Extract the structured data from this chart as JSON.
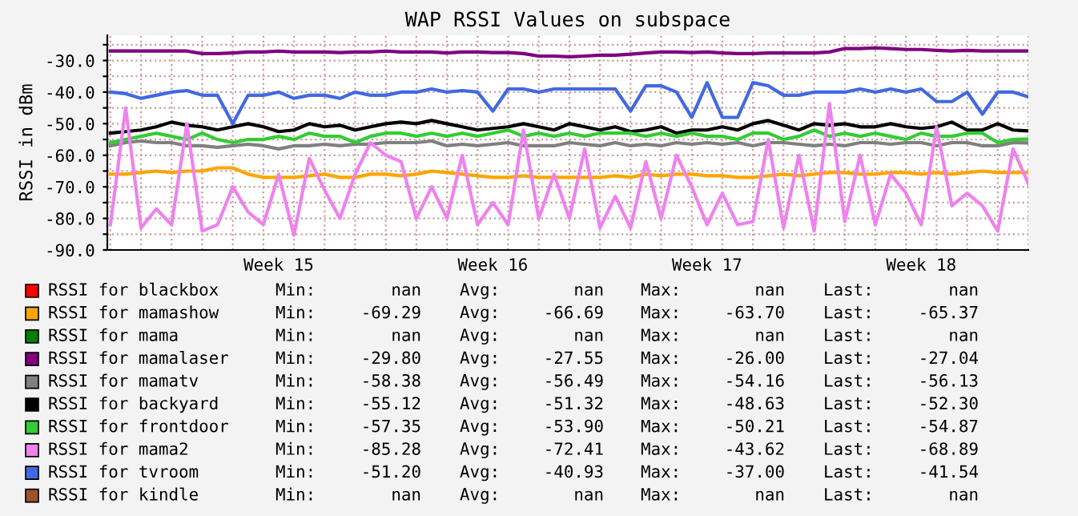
{
  "chart_data": {
    "type": "line",
    "title": "WAP RSSI Values on subspace",
    "ylabel": "RSSI in dBm",
    "categories": [
      null,
      null,
      null,
      null,
      null,
      null,
      null,
      null,
      null,
      null,
      null,
      "Week 15",
      null,
      null,
      null,
      null,
      null,
      null,
      null,
      null,
      null,
      null,
      null,
      null,
      null,
      "Week 16",
      null,
      null,
      null,
      null,
      null,
      null,
      null,
      null,
      null,
      null,
      null,
      null,
      null,
      "Week 17",
      null,
      null,
      null,
      null,
      null,
      null,
      null,
      null,
      null,
      null,
      null,
      null,
      null,
      "Week 18",
      null,
      null,
      null,
      null,
      null,
      null,
      null
    ],
    "ylim": [
      -90,
      -22
    ],
    "yticks": [
      {
        "value": -90,
        "label": "-90.0"
      },
      {
        "value": -85,
        "label": null
      },
      {
        "value": -80,
        "label": "-80.0"
      },
      {
        "value": -75,
        "label": null
      },
      {
        "value": -70,
        "label": "-70.0"
      },
      {
        "value": -65,
        "label": null
      },
      {
        "value": -60,
        "label": "-60.0"
      },
      {
        "value": -55,
        "label": null
      },
      {
        "value": -50,
        "label": "-50.0"
      },
      {
        "value": -45,
        "label": null
      },
      {
        "value": -40,
        "label": "-40.0"
      },
      {
        "value": -35,
        "label": null
      },
      {
        "value": -30,
        "label": "-30.0"
      },
      {
        "value": -25,
        "label": null
      }
    ],
    "grid": true,
    "legend": "bottom",
    "marker": "none",
    "line_style": "solid",
    "series": [
      {
        "name": "RSSI for blackbox",
        "color": "#ff0000",
        "values": [
          null,
          null,
          null,
          null,
          null,
          null,
          null,
          null,
          null,
          null,
          null,
          null,
          null,
          null,
          null,
          null,
          null,
          null,
          null,
          null,
          null,
          null,
          null,
          null,
          null,
          null,
          null,
          null,
          null,
          null,
          null,
          null,
          null,
          null,
          null,
          null,
          null,
          null,
          null,
          null,
          null,
          null,
          null,
          null,
          null,
          null,
          null,
          null,
          null,
          null,
          null,
          null,
          null,
          null,
          null,
          null,
          null,
          null,
          null,
          null,
          null
        ]
      },
      {
        "name": "RSSI for mamashow",
        "color": "#ffa500",
        "values": [
          -66,
          -66,
          -65.5,
          -65,
          -65.5,
          -65,
          -65,
          -64,
          -64,
          -66,
          -67,
          -67,
          -67,
          -66.5,
          -66,
          -67,
          -67,
          -66,
          -66,
          -66.5,
          -66,
          -65,
          -65.5,
          -66,
          -66.5,
          -67,
          -67,
          -66.5,
          -67,
          -67,
          -67,
          -67,
          -67,
          -66.5,
          -67,
          -66,
          -66.5,
          -66,
          -66,
          -66.5,
          -66.5,
          -67,
          -67,
          -66.5,
          -66,
          -66.5,
          -66,
          -65.5,
          -65.5,
          -66,
          -66,
          -65.5,
          -65.5,
          -66,
          -65.5,
          -66,
          -65.5,
          -65,
          -65.5,
          -65.5,
          -65.4
        ]
      },
      {
        "name": "RSSI for mama",
        "color": "#008000",
        "values": [
          null,
          null,
          null,
          null,
          null,
          null,
          null,
          null,
          null,
          null,
          null,
          null,
          null,
          null,
          null,
          null,
          null,
          null,
          null,
          null,
          null,
          null,
          null,
          null,
          null,
          null,
          null,
          null,
          null,
          null,
          null,
          null,
          null,
          null,
          null,
          null,
          null,
          null,
          null,
          null,
          null,
          null,
          null,
          null,
          null,
          null,
          null,
          null,
          null,
          null,
          null,
          null,
          null,
          null,
          null,
          null,
          null,
          null,
          null,
          null,
          null
        ]
      },
      {
        "name": "RSSI for mamalaser",
        "color": "#800080",
        "values": [
          -27.0,
          -27.0,
          -27.0,
          -27.0,
          -27.0,
          -27.0,
          -27.8,
          -27.8,
          -27.6,
          -27.3,
          -27.3,
          -27.0,
          -27.3,
          -27.3,
          -27.3,
          -27.5,
          -27.3,
          -27.3,
          -27.0,
          -27.3,
          -27.3,
          -27.3,
          -27.6,
          -27.3,
          -27.3,
          -27.5,
          -27.5,
          -27.8,
          -28.6,
          -28.6,
          -28.8,
          -28.6,
          -28.3,
          -28.3,
          -28.0,
          -27.6,
          -27.3,
          -27.3,
          -27.5,
          -27.3,
          -27.6,
          -27.8,
          -27.8,
          -27.6,
          -27.6,
          -27.6,
          -27.6,
          -27.3,
          -26.2,
          -26.2,
          -26.0,
          -26.2,
          -26.5,
          -26.5,
          -26.8,
          -27.0,
          -26.8,
          -27.0,
          -27.0,
          -27.0,
          -27.0
        ]
      },
      {
        "name": "RSSI for mamatv",
        "color": "#808080",
        "values": [
          -57,
          -56,
          -55.5,
          -56,
          -56,
          -57,
          -57,
          -57.5,
          -57,
          -56.5,
          -57,
          -58,
          -57,
          -57,
          -56.5,
          -57,
          -56.5,
          -56.5,
          -56,
          -56,
          -56,
          -55.5,
          -57,
          -56.5,
          -57,
          -56.5,
          -56,
          -57,
          -57,
          -57,
          -56,
          -56.5,
          -57,
          -56,
          -57,
          -56.5,
          -57,
          -56,
          -56.5,
          -56,
          -56.5,
          -56,
          -57,
          -56,
          -56,
          -56.5,
          -57,
          -56.5,
          -57,
          -56,
          -56,
          -56.5,
          -56,
          -56,
          -57,
          -56,
          -56,
          -57,
          -57,
          -56,
          -56.1
        ]
      },
      {
        "name": "RSSI for backyard",
        "color": "#000000",
        "values": [
          -53,
          -52.5,
          -52,
          -51,
          -49.5,
          -50.5,
          -51,
          -52,
          -51,
          -50,
          -51,
          -52.5,
          -52,
          -50,
          -51,
          -50.5,
          -52,
          -51,
          -50,
          -49.5,
          -50,
          -49,
          -50,
          -51,
          -52,
          -51.5,
          -51,
          -50,
          -51,
          -52,
          -50,
          -51,
          -52,
          -51,
          -52.5,
          -52,
          -51,
          -53,
          -52,
          -52,
          -51,
          -52,
          -50,
          -49,
          -50.5,
          -52,
          -50,
          -50.5,
          -50,
          -51,
          -51,
          -50,
          -51,
          -51.5,
          -51,
          -49.5,
          -52,
          -52,
          -50,
          -52,
          -52.3
        ]
      },
      {
        "name": "RSSI for frontdoor",
        "color": "#33cc33",
        "values": [
          -56,
          -55,
          -54,
          -53,
          -54,
          -55,
          -53,
          -55,
          -56,
          -55,
          -55,
          -54,
          -55,
          -53,
          -54,
          -54,
          -56,
          -54,
          -53,
          -53,
          -54,
          -53,
          -54,
          -53,
          -54,
          -53,
          -52,
          -54,
          -53,
          -54,
          -53,
          -54,
          -53,
          -53,
          -53,
          -54,
          -53,
          -54,
          -53,
          -54,
          -54,
          -55,
          -53,
          -53,
          -55,
          -54,
          -52,
          -54,
          -53,
          -54,
          -53,
          -54,
          -55,
          -53,
          -54,
          -54,
          -53,
          -53,
          -56,
          -55,
          -54.9
        ]
      },
      {
        "name": "RSSI for mama2",
        "color": "#ee82ee",
        "values": [
          -82,
          -45,
          -83,
          -77,
          -82,
          -50,
          -84,
          -82,
          -70,
          -78,
          -82,
          -66,
          -85.3,
          -61,
          -71,
          -80,
          -66,
          -56,
          -60,
          -62,
          -80,
          -70,
          -80,
          -60,
          -82,
          -75,
          -82,
          -52,
          -80,
          -66,
          -80,
          -58,
          -83,
          -73,
          -83,
          -62,
          -80,
          -60,
          -70,
          -82,
          -72,
          -82,
          -81,
          -55,
          -83,
          -60,
          -84,
          -43.6,
          -81,
          -60,
          -82,
          -66,
          -72,
          -82,
          -51,
          -76,
          -72,
          -76,
          -84,
          -58,
          -69
        ]
      },
      {
        "name": "RSSI for tvroom",
        "color": "#4169e1",
        "values": [
          -40,
          -40.5,
          -42,
          -41,
          -40,
          -39.5,
          -41,
          -41,
          -50,
          -41,
          -41,
          -40,
          -42,
          -41,
          -41,
          -42,
          -40,
          -41,
          -41,
          -40,
          -40,
          -39,
          -40,
          -39.5,
          -40,
          -46,
          -39,
          -39,
          -40,
          -39,
          -39,
          -39,
          -39,
          -39,
          -46,
          -38,
          -38,
          -40,
          -48,
          -37,
          -48,
          -48,
          -37,
          -38,
          -41,
          -41,
          -40,
          -40,
          -40,
          -39,
          -40,
          -39,
          -40,
          -39,
          -43,
          -43,
          -40,
          -47,
          -40,
          -40,
          -41.5
        ]
      },
      {
        "name": "RSSI for kindle",
        "color": "#a0522d",
        "values": [
          null,
          null,
          null,
          null,
          null,
          null,
          null,
          null,
          null,
          null,
          null,
          null,
          null,
          null,
          null,
          null,
          null,
          null,
          null,
          null,
          null,
          null,
          null,
          null,
          null,
          null,
          null,
          null,
          null,
          null,
          null,
          null,
          null,
          null,
          null,
          null,
          null,
          null,
          null,
          null,
          null,
          null,
          null,
          null,
          null,
          null,
          null,
          null,
          null,
          null,
          null,
          null,
          null,
          null,
          null,
          null,
          null,
          null,
          null,
          null,
          null
        ]
      }
    ],
    "annotations": [
      "Min:",
      "nan",
      "Avg:",
      "nan",
      "Max:",
      "nan",
      "Last:",
      "nan",
      "Min:",
      "-69.29",
      "Avg:",
      "-66.69",
      "Max:",
      "-63.70",
      "Last:",
      "-65.37",
      "Min:",
      "nan",
      "Avg:",
      "nan",
      "Max:",
      "nan",
      "Last:",
      "nan",
      "Min:",
      "-29.80",
      "Avg:",
      "-27.55",
      "Max:",
      "-26.00",
      "Last:",
      "-27.04",
      "Min:",
      "-58.38",
      "Avg:",
      "-56.49",
      "Max:",
      "-54.16",
      "Last:",
      "-56.13",
      "Min:",
      "-55.12",
      "Avg:",
      "-51.32",
      "Max:",
      "-48.63",
      "Last:",
      "-52.30",
      "Min:",
      "-57.35",
      "Avg:",
      "-53.90",
      "Max:",
      "-50.21",
      "Last:",
      "-54.87",
      "Min:",
      "-85.28",
      "Avg:",
      "-72.41",
      "Max:",
      "-43.62",
      "Last:",
      "-68.89",
      "Min:",
      "-51.20",
      "Avg:",
      "-40.93",
      "Max:",
      "-37.00",
      "Last:",
      "-41.54",
      "Min:",
      "nan",
      "Avg:",
      "nan",
      "Max:",
      "nan",
      "Last:",
      "nan"
    ]
  }
}
